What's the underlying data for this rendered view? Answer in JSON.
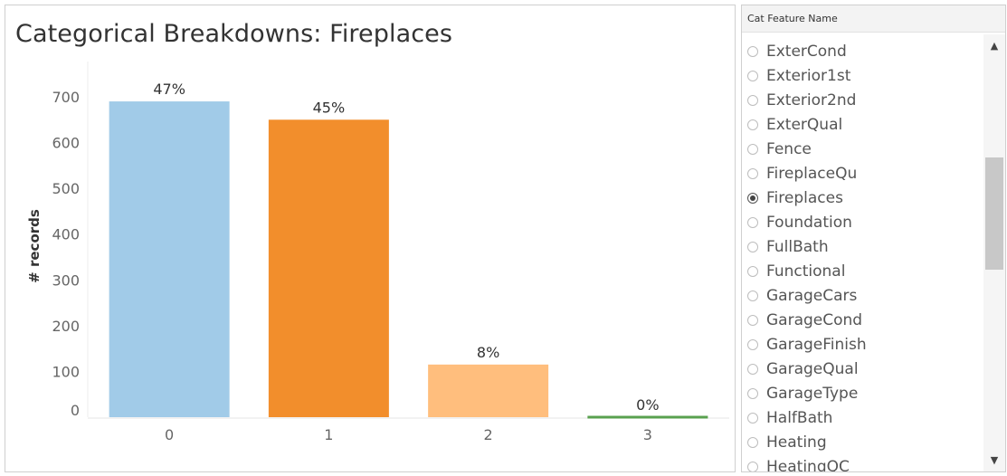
{
  "chart": {
    "title": "Categorical Breakdowns: Fireplaces"
  },
  "chart_data": {
    "type": "bar",
    "title": "Categorical Breakdowns: Fireplaces",
    "xlabel": "",
    "ylabel": "# records",
    "categories": [
      "0",
      "1",
      "2",
      "3"
    ],
    "values": [
      690,
      650,
      115,
      5
    ],
    "data_labels": [
      "47%",
      "45%",
      "8%",
      "0%"
    ],
    "colors": [
      "#a1cbe8",
      "#f28e2c",
      "#ffbe7d",
      "#59a14f"
    ],
    "ylim": [
      0,
      700
    ],
    "yticks": [
      0,
      100,
      200,
      300,
      400,
      500,
      600,
      700
    ],
    "grid": false,
    "legend": "none"
  },
  "filter": {
    "title": "Cat Feature Name",
    "items": [
      {
        "label": "ExterCond",
        "selected": false
      },
      {
        "label": "Exterior1st",
        "selected": false
      },
      {
        "label": "Exterior2nd",
        "selected": false
      },
      {
        "label": "ExterQual",
        "selected": false
      },
      {
        "label": "Fence",
        "selected": false
      },
      {
        "label": "FireplaceQu",
        "selected": false
      },
      {
        "label": "Fireplaces",
        "selected": true
      },
      {
        "label": "Foundation",
        "selected": false
      },
      {
        "label": "FullBath",
        "selected": false
      },
      {
        "label": "Functional",
        "selected": false
      },
      {
        "label": "GarageCars",
        "selected": false
      },
      {
        "label": "GarageCond",
        "selected": false
      },
      {
        "label": "GarageFinish",
        "selected": false
      },
      {
        "label": "GarageQual",
        "selected": false
      },
      {
        "label": "GarageType",
        "selected": false
      },
      {
        "label": "HalfBath",
        "selected": false
      },
      {
        "label": "Heating",
        "selected": false
      },
      {
        "label": "HeatingQC",
        "selected": false
      }
    ],
    "scroll_up_icon": "chevron-up-icon",
    "scroll_down_icon": "chevron-down-icon"
  }
}
